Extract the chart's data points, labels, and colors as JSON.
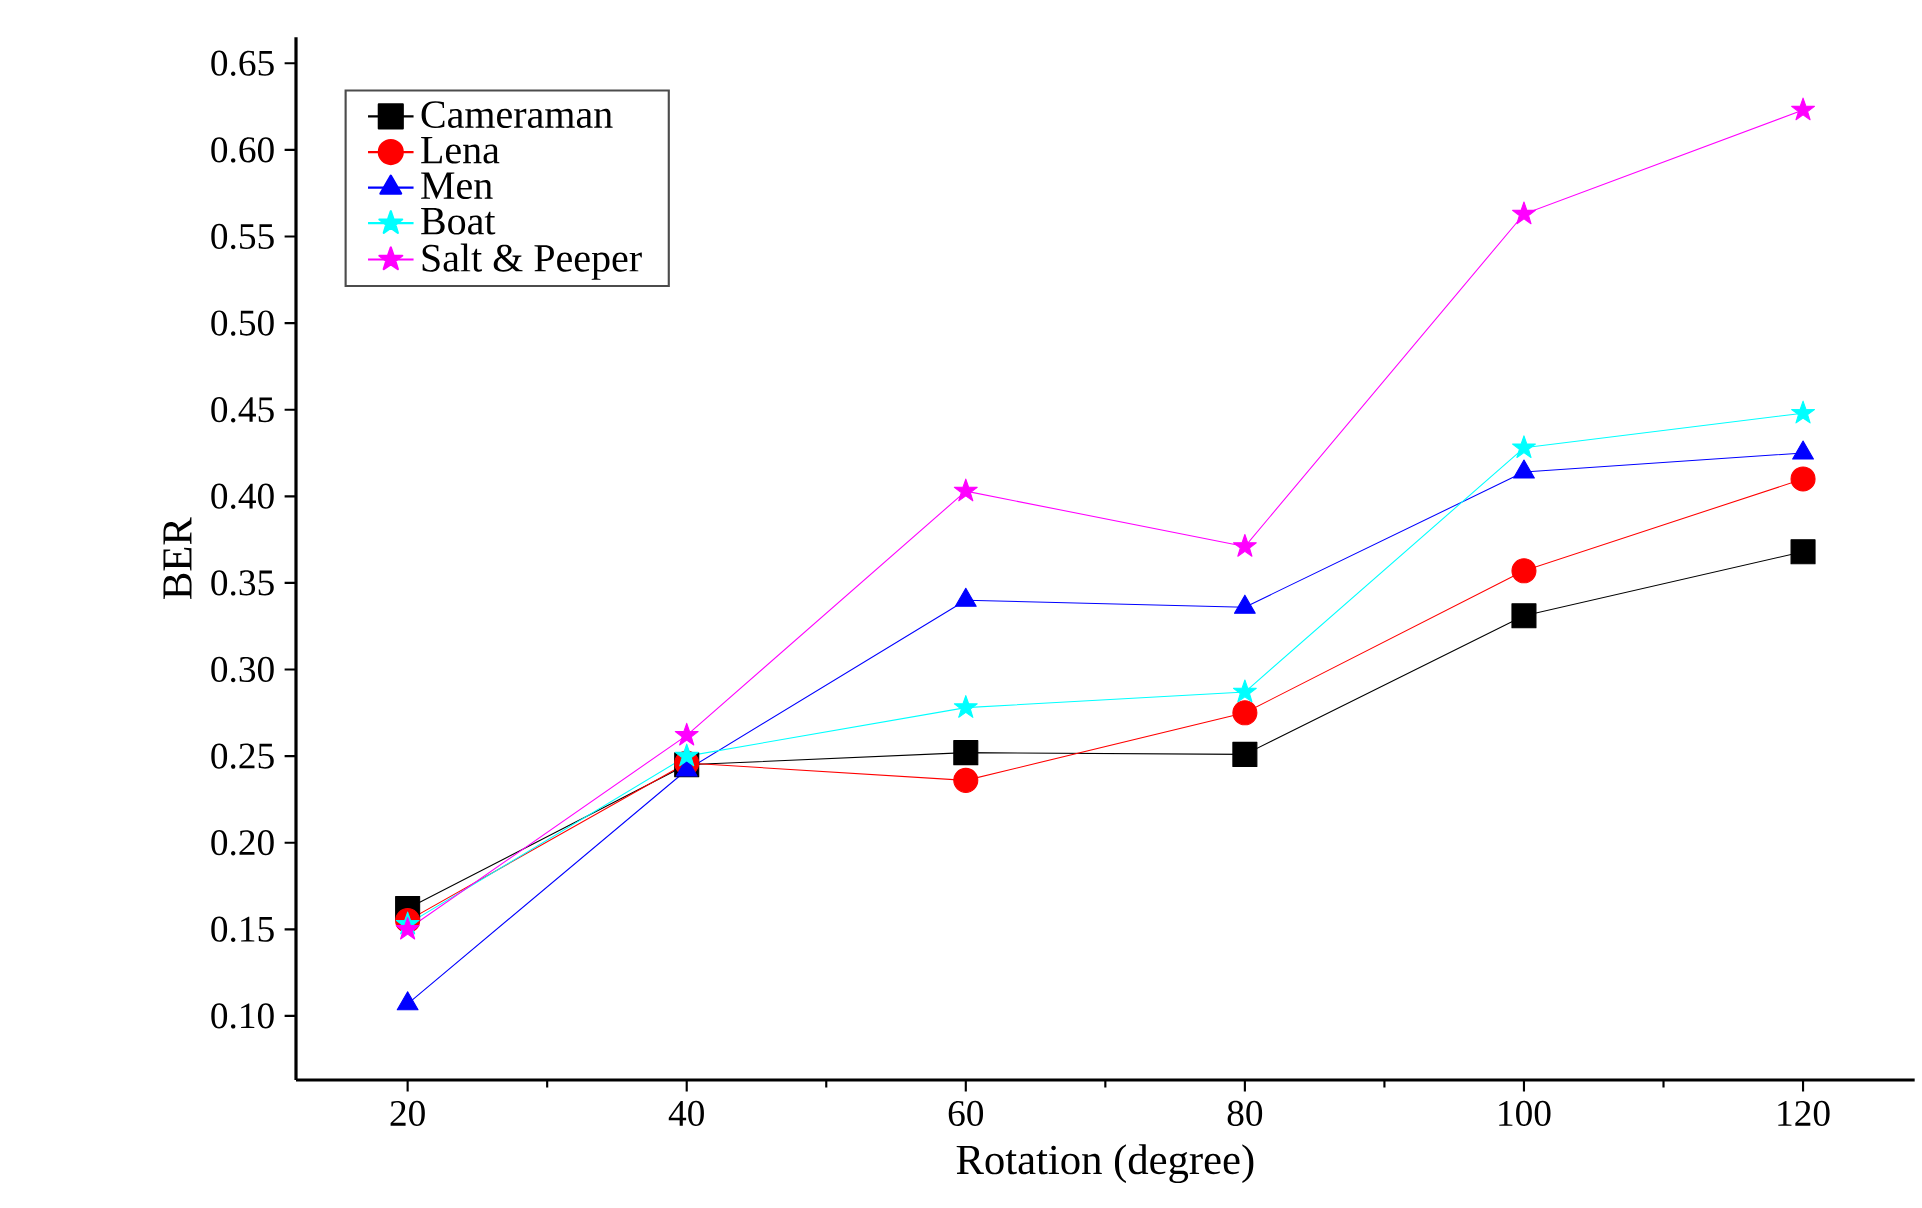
{
  "chart_data": {
    "type": "line",
    "xlabel": "Rotation (degree)",
    "ylabel": "BER",
    "x": [
      20,
      40,
      60,
      80,
      100,
      120
    ],
    "xlim": [
      12,
      128
    ],
    "xticks": [
      20,
      40,
      60,
      80,
      100,
      120
    ],
    "ylim": [
      0.063,
      0.665
    ],
    "yticks": [
      {
        "value": 0.1,
        "label": "0.10"
      },
      {
        "value": 0.15,
        "label": "0.15"
      },
      {
        "value": 0.2,
        "label": "0.20"
      },
      {
        "value": 0.25,
        "label": "0.25"
      },
      {
        "value": 0.3,
        "label": "0.30"
      },
      {
        "value": 0.35,
        "label": "0.35"
      },
      {
        "value": 0.4,
        "label": "0.40"
      },
      {
        "value": 0.45,
        "label": "0.45"
      },
      {
        "value": 0.5,
        "label": "0.50"
      },
      {
        "value": 0.55,
        "label": "0.55"
      },
      {
        "value": 0.6,
        "label": "0.60"
      },
      {
        "value": 0.65,
        "label": "0.65"
      }
    ],
    "legend": "top left",
    "grid": false,
    "line_style": "solid",
    "series": [
      {
        "name": "Cameraman",
        "color": "#000000",
        "marker": "square",
        "values": [
          0.162,
          0.245,
          0.252,
          0.251,
          0.331,
          0.368
        ]
      },
      {
        "name": "Lena",
        "color": "#ff0000",
        "marker": "circle",
        "values": [
          0.155,
          0.246,
          0.236,
          0.275,
          0.357,
          0.41
        ]
      },
      {
        "name": "Men",
        "color": "#0000ff",
        "marker": "triangle",
        "values": [
          0.107,
          0.242,
          0.34,
          0.336,
          0.414,
          0.425
        ]
      },
      {
        "name": "Boat",
        "color": "#00ffff",
        "marker": "star",
        "values": [
          0.153,
          0.25,
          0.278,
          0.287,
          0.428,
          0.448
        ]
      },
      {
        "name": "Salt & Peeper",
        "color": "#ff00ff",
        "marker": "star",
        "values": [
          0.15,
          0.262,
          0.403,
          0.371,
          0.563,
          0.623
        ]
      }
    ]
  }
}
